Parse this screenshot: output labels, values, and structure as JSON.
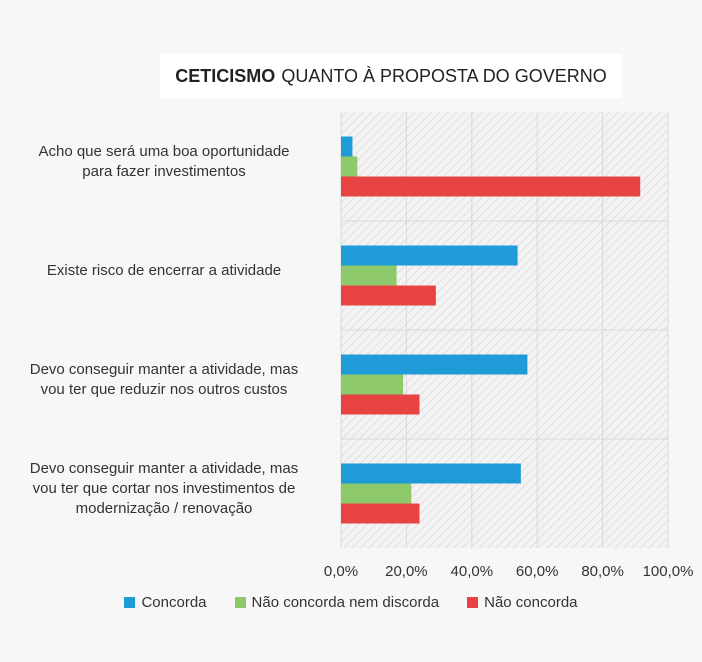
{
  "chart_data": {
    "type": "bar",
    "orientation": "horizontal",
    "title_bold": "CETICISMO",
    "title_rest": "QUANTO À PROPOSTA DO GOVERNO",
    "categories": [
      [
        "Acho que será uma boa oportunidade",
        "para fazer investimentos"
      ],
      [
        "Existe risco de encerrar a atividade"
      ],
      [
        "Devo conseguir manter a atividade, mas",
        "vou ter que reduzir nos outros custos"
      ],
      [
        "Devo conseguir manter a atividade, mas",
        "vou ter que cortar nos investimentos de",
        "modernização / renovação"
      ]
    ],
    "series": [
      {
        "name": "Concorda",
        "color": "#1f9bd7",
        "values": [
          3.5,
          54.0,
          57.0,
          55.0
        ]
      },
      {
        "name": "Não concorda nem discorda",
        "color": "#8dc96a",
        "values": [
          5.0,
          17.0,
          19.0,
          21.5
        ]
      },
      {
        "name": "Não concorda",
        "color": "#e84343",
        "values": [
          91.5,
          29.0,
          24.0,
          24.0
        ]
      }
    ],
    "xlim": [
      0,
      100
    ],
    "xticks": [
      "0,0%",
      "20,0%",
      "40,0%",
      "60,0%",
      "80,0%",
      "100,0%"
    ],
    "grid": true,
    "legend_position": "bottom"
  }
}
